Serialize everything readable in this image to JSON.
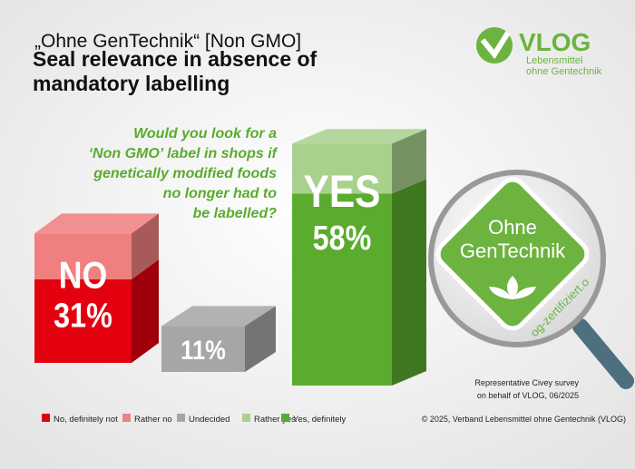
{
  "chart_data": {
    "type": "bar",
    "stacked": true,
    "title": "„Ohne GenTechnik“ [Non GMO]",
    "subtitle": "Seal relevance in absence of mandatory labelling",
    "question": [
      "Would you look for a",
      "‘Non GMO’ label in shops if",
      "genetically modified foods",
      "no longer had to",
      "be labelled?"
    ],
    "categories": [
      "NO",
      null,
      "YES"
    ],
    "totals": [
      31,
      11,
      58
    ],
    "total_labels": [
      "31%",
      "11%",
      "58%"
    ],
    "series": [
      {
        "name": "No, definitely not",
        "color": "#e3000f",
        "values": [
          20,
          0,
          0
        ]
      },
      {
        "name": "Rather no",
        "color": "#f07f7f",
        "values": [
          11,
          0,
          0
        ]
      },
      {
        "name": "Undecided",
        "color": "#a6a6a6",
        "values": [
          0,
          11,
          0
        ]
      },
      {
        "name": "Rather yes",
        "color": "#a9d18e",
        "values": [
          0,
          0,
          12
        ]
      },
      {
        "name": "Yes, definitely",
        "color": "#5aab2e",
        "values": [
          0,
          0,
          46
        ]
      }
    ],
    "source": [
      "Representative  Civey survey",
      "on behalf of VLOG, 06/2025"
    ],
    "copyright": "© 2025, Verband  Lebensmittel  ohne Gentechnik  (VLOG)"
  },
  "logo": {
    "name": "VLOG",
    "line1": "Lebensmittel",
    "line2": "ohne Gentechnik"
  },
  "seal": {
    "line1": "Ohne",
    "line2": "GenTechnik",
    "url": "og-zertifiziert.o"
  }
}
